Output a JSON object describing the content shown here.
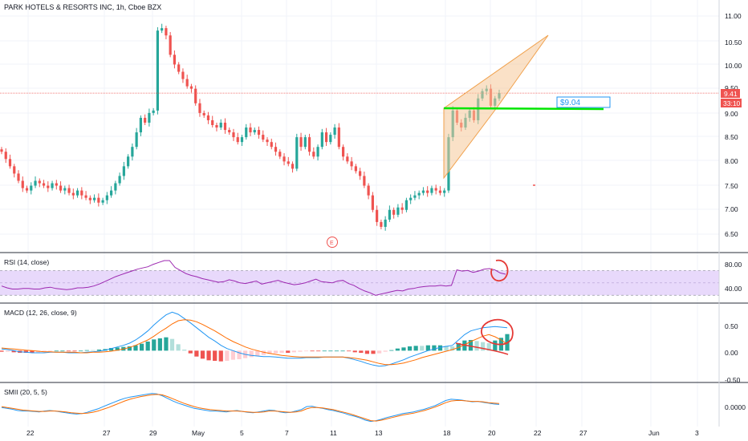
{
  "header": {
    "title": "PARK HOTELS & RESORTS INC, 1h, Cboe BZX"
  },
  "colors": {
    "up": "#26a69a",
    "down": "#ef5350",
    "grid": "#f0f3fa",
    "separator": "#2a2e39",
    "rsi_band": "#e8d9fb",
    "rsi_line": "#9c27b0",
    "macd_line": "#2196f3",
    "signal_line": "#ff6d00",
    "hist_up_strong": "#26a69a",
    "hist_up_weak": "#b2dfdb",
    "hist_down_strong": "#ef5350",
    "hist_down_weak": "#ffcdd2",
    "smii_line": "#2196f3",
    "smii_signal": "#ff6d00",
    "wedge_fill": "#f5c999",
    "wedge_stroke": "#f0a04b",
    "support_line": "#00e600",
    "annotation": "#e53935",
    "price_tag": "#ef5350",
    "note_text": "#2196f3"
  },
  "price_axis": {
    "ticks": [
      "11.00",
      "10.50",
      "10.00",
      "9.50",
      "9.00",
      "8.50",
      "8.00",
      "7.50",
      "7.00",
      "6.50"
    ],
    "last_price": "9.41",
    "countdown": "33:10"
  },
  "time_axis": {
    "ticks": [
      "22",
      "27",
      "29",
      "May",
      "5",
      "7",
      "11",
      "13",
      "18",
      "20",
      "22",
      "27",
      "Jun",
      "3"
    ]
  },
  "annotations": {
    "price_note": "$9.04",
    "earnings_marker": "E"
  },
  "panes": {
    "rsi": {
      "label": "RSI (14, close)",
      "ticks": [
        "80.00",
        "40.00"
      ]
    },
    "macd": {
      "label": "MACD (12, 26, close, 9)",
      "ticks": [
        "0.50",
        "0.00",
        "-0.50"
      ]
    },
    "smii": {
      "label": "SMII (20, 5, 5)",
      "ticks": [
        "0.0000"
      ]
    }
  },
  "chart_data": [
    {
      "type": "candlestick",
      "title": "PARK HOTELS & RESORTS INC, 1h, Cboe BZX",
      "ylim": [
        6.3,
        11.1
      ],
      "x_labels": [
        "22",
        "27",
        "29",
        "May",
        "5",
        "7",
        "11",
        "13",
        "18",
        "20",
        "22",
        "27",
        "Jun",
        "3"
      ],
      "closes": [
        8.2,
        8.05,
        7.9,
        7.75,
        7.6,
        7.45,
        7.4,
        7.5,
        7.6,
        7.55,
        7.5,
        7.45,
        7.55,
        7.5,
        7.4,
        7.45,
        7.35,
        7.3,
        7.4,
        7.3,
        7.25,
        7.2,
        7.25,
        7.15,
        7.2,
        7.3,
        7.4,
        7.55,
        7.7,
        7.9,
        8.1,
        8.3,
        8.6,
        8.9,
        8.8,
        9.0,
        9.05,
        10.7,
        10.75,
        10.6,
        10.2,
        10.0,
        9.85,
        9.7,
        9.55,
        9.5,
        9.2,
        9.0,
        8.95,
        8.85,
        8.75,
        8.7,
        8.8,
        8.65,
        8.6,
        8.5,
        8.4,
        8.5,
        8.7,
        8.6,
        8.65,
        8.55,
        8.45,
        8.4,
        8.3,
        8.2,
        8.1,
        8.0,
        7.95,
        7.85,
        8.5,
        8.3,
        8.5,
        8.2,
        8.1,
        8.3,
        8.6,
        8.4,
        8.55,
        8.7,
        8.3,
        8.1,
        8.0,
        7.9,
        7.8,
        7.7,
        7.5,
        7.3,
        7.0,
        6.75,
        6.65,
        6.8,
        7.0,
        6.9,
        7.05,
        7.0,
        7.2,
        7.25,
        7.3,
        7.35,
        7.4,
        7.35,
        7.45,
        7.4,
        7.35,
        7.4,
        8.5,
        9.05,
        8.8,
        8.7,
        8.9,
        9.05,
        8.85,
        9.3,
        9.45,
        9.5,
        9.15,
        9.3,
        9.41
      ]
    },
    {
      "type": "line",
      "name": "RSI (14, close)",
      "ylim": [
        20,
        95
      ],
      "band": [
        30,
        70
      ],
      "band_mid": 50,
      "values": [
        45,
        42,
        40,
        40,
        41,
        41,
        40,
        40,
        42,
        43,
        41,
        40,
        39,
        40,
        42,
        42,
        43,
        45,
        48,
        52,
        56,
        60,
        63,
        66,
        69,
        72,
        74,
        76,
        80,
        83,
        86,
        86,
        75,
        70,
        65,
        62,
        60,
        57,
        55,
        53,
        51,
        52,
        55,
        53,
        50,
        49,
        51,
        53,
        48,
        50,
        52,
        54,
        51,
        49,
        47,
        48,
        50,
        53,
        56,
        52,
        51,
        50,
        53,
        54,
        49,
        46,
        41,
        37,
        34,
        30,
        32,
        34,
        36,
        38,
        37,
        40,
        41,
        43,
        44,
        45,
        45,
        46,
        45,
        46,
        71,
        69,
        70,
        67,
        69,
        72,
        73,
        71,
        66,
        64
      ]
    },
    {
      "type": "line",
      "name": "MACD (12, 26, close, 9)",
      "ylim": [
        -0.55,
        0.8
      ],
      "macd": [
        0.03,
        0.02,
        0.0,
        -0.02,
        -0.03,
        -0.04,
        -0.04,
        -0.04,
        -0.03,
        -0.03,
        -0.03,
        -0.04,
        -0.04,
        -0.04,
        -0.03,
        -0.02,
        -0.01,
        0.01,
        0.04,
        0.07,
        0.1,
        0.14,
        0.2,
        0.28,
        0.37,
        0.48,
        0.58,
        0.67,
        0.72,
        0.68,
        0.6,
        0.52,
        0.43,
        0.34,
        0.25,
        0.18,
        0.1,
        0.04,
        0.0,
        -0.04,
        -0.07,
        -0.09,
        -0.1,
        -0.11,
        -0.11,
        -0.12,
        -0.13,
        -0.14,
        -0.14,
        -0.14,
        -0.13,
        -0.13,
        -0.13,
        -0.12,
        -0.12,
        -0.12,
        -0.12,
        -0.14,
        -0.17,
        -0.2,
        -0.24,
        -0.27,
        -0.29,
        -0.28,
        -0.25,
        -0.21,
        -0.17,
        -0.12,
        -0.08,
        -0.04,
        0.0,
        0.03,
        0.06,
        0.08,
        0.1,
        0.2,
        0.3,
        0.37,
        0.4,
        0.43,
        0.44,
        0.45,
        0.44,
        0.43
      ],
      "signal": [
        0.05,
        0.04,
        0.03,
        0.02,
        0.01,
        0.0,
        -0.01,
        -0.02,
        -0.02,
        -0.03,
        -0.03,
        -0.03,
        -0.03,
        -0.04,
        -0.04,
        -0.03,
        -0.03,
        -0.02,
        -0.01,
        0.01,
        0.03,
        0.06,
        0.1,
        0.15,
        0.2,
        0.27,
        0.35,
        0.42,
        0.5,
        0.56,
        0.58,
        0.57,
        0.54,
        0.49,
        0.43,
        0.37,
        0.3,
        0.23,
        0.17,
        0.12,
        0.07,
        0.03,
        0.0,
        -0.03,
        -0.05,
        -0.07,
        -0.09,
        -0.1,
        -0.11,
        -0.12,
        -0.12,
        -0.12,
        -0.12,
        -0.12,
        -0.12,
        -0.12,
        -0.12,
        -0.13,
        -0.14,
        -0.16,
        -0.18,
        -0.21,
        -0.24,
        -0.26,
        -0.26,
        -0.25,
        -0.23,
        -0.2,
        -0.17,
        -0.13,
        -0.1,
        -0.07,
        -0.04,
        -0.01,
        0.02,
        0.06,
        0.11,
        0.17,
        0.22,
        0.27,
        0.3,
        0.26,
        0.2,
        0.12
      ]
    },
    {
      "type": "line",
      "name": "SMII (20, 5, 5)",
      "ylim": [
        -0.3,
        0.6
      ],
      "smii": [
        0.1,
        0.08,
        0.06,
        0.03,
        0.02,
        0.02,
        0.01,
        0.0,
        0.02,
        0.03,
        0.02,
        0.0,
        -0.02,
        -0.04,
        -0.05,
        -0.04,
        -0.01,
        0.03,
        0.07,
        0.12,
        0.17,
        0.22,
        0.27,
        0.31,
        0.34,
        0.36,
        0.38,
        0.4,
        0.42,
        0.41,
        0.37,
        0.31,
        0.25,
        0.2,
        0.16,
        0.12,
        0.08,
        0.06,
        0.04,
        0.02,
        0.02,
        0.01,
        0.0,
        0.02,
        0.03,
        0.01,
        -0.01,
        -0.02,
        0.0,
        0.02,
        0.04,
        0.03,
        0.0,
        -0.02,
        -0.01,
        0.02,
        0.05,
        0.12,
        0.13,
        0.1,
        0.08,
        0.05,
        0.03,
        0.0,
        -0.03,
        -0.07,
        -0.1,
        -0.14,
        -0.19,
        -0.22,
        -0.2,
        -0.17,
        -0.13,
        -0.1,
        -0.07,
        -0.04,
        -0.02,
        0.0,
        0.03,
        0.06,
        0.1,
        0.14,
        0.2,
        0.26,
        0.29,
        0.28,
        0.27,
        0.25,
        0.23,
        0.24,
        0.22,
        0.2,
        0.18,
        0.17
      ],
      "signal": [
        0.12,
        0.1,
        0.08,
        0.06,
        0.04,
        0.03,
        0.02,
        0.01,
        0.01,
        0.02,
        0.02,
        0.01,
        0.0,
        -0.02,
        -0.03,
        -0.04,
        -0.03,
        -0.01,
        0.02,
        0.06,
        0.1,
        0.15,
        0.2,
        0.25,
        0.29,
        0.32,
        0.35,
        0.37,
        0.39,
        0.4,
        0.39,
        0.35,
        0.3,
        0.25,
        0.2,
        0.16,
        0.12,
        0.09,
        0.07,
        0.05,
        0.04,
        0.03,
        0.02,
        0.02,
        0.02,
        0.01,
        0.0,
        -0.01,
        -0.01,
        0.0,
        0.02,
        0.02,
        0.01,
        0.0,
        -0.01,
        0.0,
        0.02,
        0.07,
        0.1,
        0.1,
        0.09,
        0.07,
        0.05,
        0.02,
        -0.01,
        -0.04,
        -0.08,
        -0.12,
        -0.16,
        -0.2,
        -0.21,
        -0.19,
        -0.16,
        -0.13,
        -0.1,
        -0.07,
        -0.05,
        -0.03,
        0.0,
        0.03,
        0.07,
        0.11,
        0.16,
        0.21,
        0.25,
        0.26,
        0.26,
        0.25,
        0.24,
        0.24,
        0.23,
        0.21,
        0.2,
        0.19
      ]
    }
  ]
}
